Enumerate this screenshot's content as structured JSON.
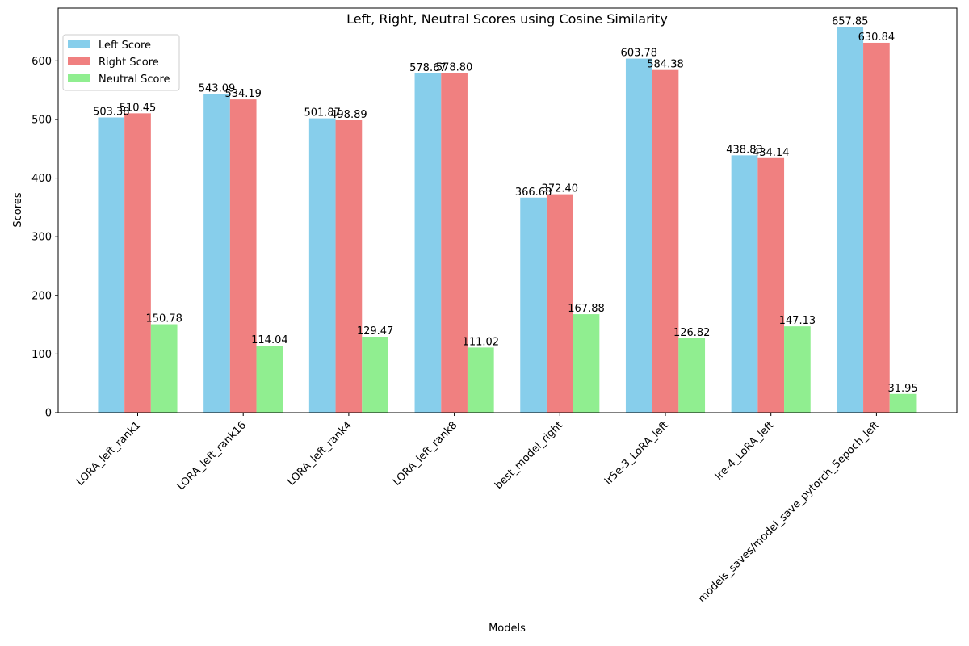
{
  "chart_data": {
    "type": "bar",
    "title": "Left, Right, Neutral Scores using Cosine Similarity",
    "xlabel": "Models",
    "ylabel": "Scores",
    "ylim": [
      0,
      690
    ],
    "yticks": [
      0,
      100,
      200,
      300,
      400,
      500,
      600
    ],
    "categories": [
      "LORA_left_rank1",
      "LORA_left_rank16",
      "LORA_left_rank4",
      "LORA_left_rank8",
      "best_model_right",
      "lr5e-3_LoRA_left",
      "lre-4_LoRA_left",
      "models_saves/model_save_pytorch_5epoch_left"
    ],
    "series": [
      {
        "name": "Left Score",
        "color": "#87CEEB",
        "values": [
          503.38,
          543.09,
          501.87,
          578.67,
          366.68,
          603.78,
          438.83,
          657.85
        ],
        "labels": [
          "503.38",
          "543.09",
          "501.87",
          "578.67",
          "366.68",
          "603.78",
          "438.83",
          "657.85"
        ]
      },
      {
        "name": "Right Score",
        "color": "#F08080",
        "values": [
          510.45,
          534.19,
          498.89,
          578.8,
          372.4,
          584.38,
          434.14,
          630.84
        ],
        "labels": [
          "510.45",
          "534.19",
          "498.89",
          "578.80",
          "372.40",
          "584.38",
          "434.14",
          "630.84"
        ]
      },
      {
        "name": "Neutral Score",
        "color": "#90EE90",
        "values": [
          150.78,
          114.04,
          129.47,
          111.02,
          167.88,
          126.82,
          147.13,
          31.95
        ],
        "labels": [
          "150.78",
          "114.04",
          "129.47",
          "111.02",
          "167.88",
          "126.82",
          "147.13",
          "31.95"
        ]
      }
    ],
    "grid": false,
    "legend_position": "top-left"
  }
}
